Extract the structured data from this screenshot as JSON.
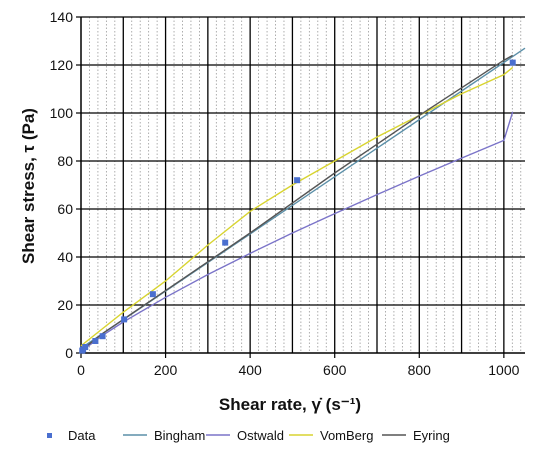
{
  "chart_data": {
    "type": "line",
    "title": "",
    "xlabel": "Shear rate, γ̇ (s⁻¹)",
    "ylabel": "Shear stress, τ (Pa)",
    "xlim": [
      0,
      1050
    ],
    "ylim": [
      0,
      140
    ],
    "x_ticks": [
      0,
      200,
      400,
      600,
      800,
      1000
    ],
    "y_ticks": [
      0,
      20,
      40,
      60,
      80,
      100,
      120,
      140
    ],
    "x_tick_labels": [
      "0",
      "200",
      "400",
      "600",
      "800",
      "1000"
    ],
    "y_tick_labels": [
      "0",
      "20",
      "40",
      "60",
      "80",
      "100",
      "120",
      "140"
    ],
    "grid": "major solid, minor dotted",
    "legend_position": "bottom",
    "series": [
      {
        "name": "Data",
        "kind": "points",
        "color": "#4a6fcf",
        "x": [
          3,
          5,
          10,
          34,
          51,
          102,
          170,
          341,
          511,
          1021
        ],
        "y": [
          1,
          1.5,
          2.5,
          5,
          7,
          14,
          24.5,
          46,
          72,
          121
        ]
      },
      {
        "name": "Bingham",
        "kind": "line",
        "color": "#5b8fa8",
        "x": [
          0,
          1050
        ],
        "y": [
          2,
          127
        ]
      },
      {
        "name": "Ostwald",
        "kind": "line",
        "color": "#7b74c9",
        "x": [
          0,
          10,
          50,
          100,
          200,
          300,
          400,
          500,
          600,
          700,
          800,
          900,
          1000,
          1021
        ],
        "y": [
          0,
          1.9,
          7.2,
          12.9,
          23.2,
          32.7,
          41.5,
          50,
          58.1,
          66,
          73.7,
          81.2,
          88.6,
          100.5
        ]
      },
      {
        "name": "VomBerg",
        "kind": "line",
        "color": "#d8d430",
        "x": [
          0,
          50,
          100,
          200,
          300,
          400,
          500,
          600,
          700,
          800,
          900,
          1000,
          1021
        ],
        "y": [
          3,
          10,
          17,
          30,
          45,
          59,
          70,
          80,
          90,
          99,
          108,
          116,
          119
        ]
      },
      {
        "name": "Eyring",
        "kind": "line",
        "color": "#555555",
        "x": [
          0,
          50,
          100,
          200,
          400,
          600,
          800,
          1000,
          1021
        ],
        "y": [
          1,
          8,
          14,
          26,
          50,
          75,
          99,
          122,
          124
        ]
      }
    ]
  }
}
